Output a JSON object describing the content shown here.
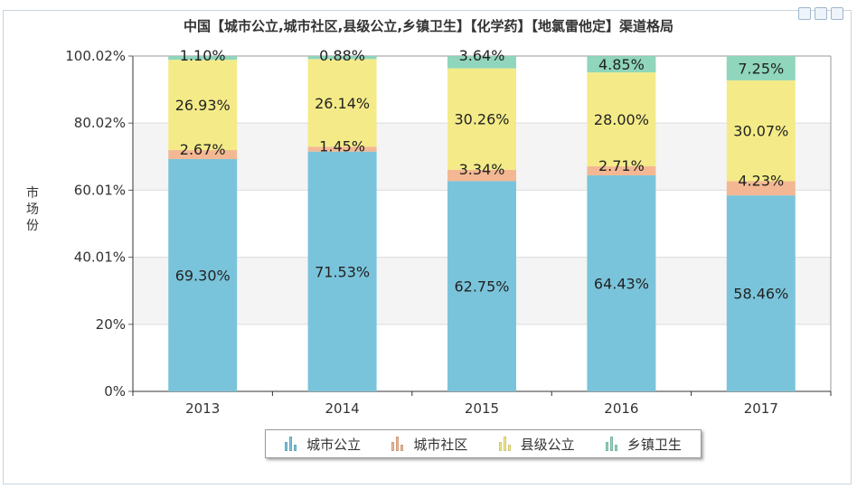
{
  "title": "中国【城市公立,城市社区,县级公立,乡镇卫生】【化学药】【地氯雷他定】渠道格局",
  "ylabel": "市场份",
  "chart_data": {
    "type": "bar",
    "stacked": true,
    "title": "中国【城市公立,城市社区,县级公立,乡镇卫生】【化学药】【地氯雷他定】渠道格局",
    "xlabel": "",
    "ylabel": "市场份",
    "categories": [
      "2013",
      "2014",
      "2015",
      "2016",
      "2017"
    ],
    "yticks": [
      "0%",
      "20%",
      "40.01%",
      "60.01%",
      "80.02%",
      "100.02%"
    ],
    "ylim": [
      0,
      100.02
    ],
    "series": [
      {
        "name": "城市公立",
        "color": "#7ac4db",
        "values": [
          69.3,
          71.53,
          62.75,
          64.43,
          58.46
        ],
        "labels": [
          "69.30%",
          "71.53%",
          "62.75%",
          "64.43%",
          "58.46%"
        ]
      },
      {
        "name": "城市社区",
        "color": "#f3b893",
        "values": [
          2.67,
          1.45,
          3.34,
          2.71,
          4.23
        ],
        "labels": [
          "2.67%",
          "1.45%",
          "3.34%",
          "2.71%",
          "4.23%"
        ]
      },
      {
        "name": "县级公立",
        "color": "#f4eb88",
        "values": [
          26.93,
          26.14,
          30.26,
          28.0,
          30.07
        ],
        "labels": [
          "26.93%",
          "26.14%",
          "30.26%",
          "28.00%",
          "30.07%"
        ]
      },
      {
        "name": "乡镇卫生",
        "color": "#8fd6bc",
        "values": [
          1.1,
          0.88,
          3.64,
          4.85,
          7.25
        ],
        "labels": [
          "1.10%",
          "0.88%",
          "3.64%",
          "4.85%",
          "7.25%"
        ]
      }
    ],
    "grid": true,
    "legend_position": "bottom"
  }
}
